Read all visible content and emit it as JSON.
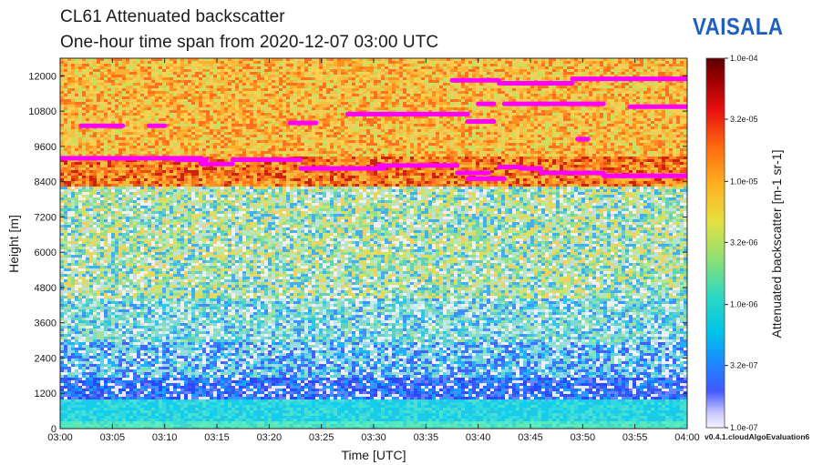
{
  "header": {
    "title_line1": "CL61  Attenuated backscatter",
    "title_line2": "One-hour time span from 2020-12-07 03:00 UTC",
    "brand": "VAISALA",
    "version": "v0.4.1.cloudAlgoEvaluation6"
  },
  "colors": {
    "cloud_marker": "#ff00ff",
    "brand": "#1f5fbf"
  },
  "chart_data": {
    "type": "heatmap",
    "title": "CL61  Attenuated backscatter",
    "subtitle": "One-hour time span from 2020-12-07 03:00 UTC",
    "xlabel": "Time [UTC]",
    "ylabel": "Height [m]",
    "xlim": [
      0,
      60
    ],
    "ylim": [
      0,
      12600
    ],
    "xticks": [
      {
        "min": 0,
        "label": "03:00"
      },
      {
        "min": 5,
        "label": "03:05"
      },
      {
        "min": 10,
        "label": "03:10"
      },
      {
        "min": 15,
        "label": "03:15"
      },
      {
        "min": 20,
        "label": "03:20"
      },
      {
        "min": 25,
        "label": "03:25"
      },
      {
        "min": 30,
        "label": "03:30"
      },
      {
        "min": 35,
        "label": "03:35"
      },
      {
        "min": 40,
        "label": "03:40"
      },
      {
        "min": 45,
        "label": "03:45"
      },
      {
        "min": 50,
        "label": "03:50"
      },
      {
        "min": 55,
        "label": "03:55"
      },
      {
        "min": 60,
        "label": "04:00"
      }
    ],
    "yticks": [
      0,
      1200,
      2400,
      3600,
      4800,
      6000,
      7200,
      8400,
      9600,
      10800,
      12000
    ],
    "colorbar": {
      "label": "Attenuated backscatter [m-1 sr-1]",
      "scale": "log",
      "range": [
        1e-07,
        0.0001
      ],
      "ticks": [
        "1.0e-04",
        "3.2e-05",
        "1.0e-05",
        "3.2e-06",
        "1.0e-06",
        "3.2e-07",
        "1.0e-07"
      ]
    },
    "background_profile": [
      {
        "height_min": 0,
        "height_max": 1000,
        "class": "surface layer",
        "approx_value": 5e-07
      },
      {
        "height_min": 1000,
        "height_max": 4000,
        "class": "noise blue",
        "approx_value": 3e-07
      },
      {
        "height_min": 4000,
        "height_max": 8300,
        "class": "noise green-yellow",
        "approx_value": 1e-06
      },
      {
        "height_min": 8300,
        "height_max": 9300,
        "class": "dense cloud",
        "approx_value": 3e-05
      },
      {
        "height_min": 9300,
        "height_max": 12600,
        "class": "cloud/noise orange",
        "approx_value": 1e-05
      }
    ],
    "cloud_base_segments": [
      {
        "t0": 0,
        "t1": 13.5,
        "h": 9200
      },
      {
        "t0": 11,
        "t1": 14,
        "h": 9150
      },
      {
        "t0": 13.5,
        "t1": 16.5,
        "h": 9000
      },
      {
        "t0": 16.5,
        "t1": 23,
        "h": 9150
      },
      {
        "t0": 23,
        "t1": 31,
        "h": 8850
      },
      {
        "t0": 30.5,
        "t1": 38,
        "h": 8950
      },
      {
        "t0": 38,
        "t1": 41,
        "h": 8700
      },
      {
        "t0": 39,
        "t1": 42.5,
        "h": 8500
      },
      {
        "t0": 42,
        "t1": 44,
        "h": 8900
      },
      {
        "t0": 44,
        "t1": 46,
        "h": 8850
      },
      {
        "t0": 46,
        "t1": 52,
        "h": 8700
      },
      {
        "t0": 52,
        "t1": 60,
        "h": 8600
      },
      {
        "t0": 2,
        "t1": 6,
        "h": 10300
      },
      {
        "t0": 8.5,
        "t1": 10,
        "h": 10300
      },
      {
        "t0": 22,
        "t1": 24.5,
        "h": 10400
      },
      {
        "t0": 27.5,
        "t1": 31.5,
        "h": 10700
      },
      {
        "t0": 31.5,
        "t1": 39,
        "h": 10700
      },
      {
        "t0": 39,
        "t1": 41.5,
        "h": 10450
      },
      {
        "t0": 40,
        "t1": 41.5,
        "h": 11050
      },
      {
        "t0": 42.5,
        "t1": 52,
        "h": 11050
      },
      {
        "t0": 49.5,
        "t1": 50.5,
        "h": 9850
      },
      {
        "t0": 54.5,
        "t1": 60,
        "h": 10950
      },
      {
        "t0": 37.5,
        "t1": 42,
        "h": 11850
      },
      {
        "t0": 42,
        "t1": 49,
        "h": 11750
      },
      {
        "t0": 49,
        "t1": 60,
        "h": 11900
      }
    ]
  }
}
